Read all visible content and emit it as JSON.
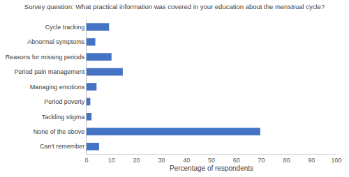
{
  "chart_data": {
    "type": "bar",
    "orientation": "horizontal",
    "title": "Survey question: What practical information was covered in your education about the menstrual cycle?",
    "x_label": "Percentage of respondents",
    "categories": [
      "Cycle tracking",
      "Abnormal symptoms",
      "Reasons for missing periods",
      "Period pain management",
      "Managing emotions",
      "Period poverty",
      "Tackling stigma",
      "None of the above",
      "Can't remember"
    ],
    "values": [
      9,
      3.5,
      10,
      14.5,
      4,
      1.5,
      2,
      69.5,
      5
    ],
    "color": "#4472c4",
    "xlim": [
      0,
      100
    ],
    "xticks": [
      0,
      10,
      20,
      30,
      40,
      50,
      60,
      70,
      80,
      90,
      100
    ],
    "grid": false
  }
}
